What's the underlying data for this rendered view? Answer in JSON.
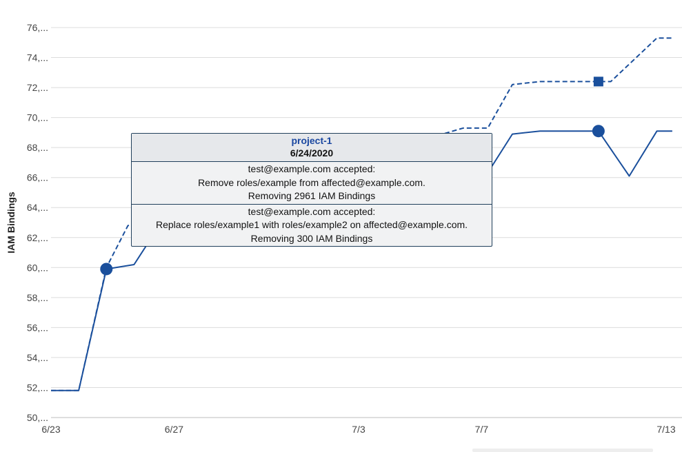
{
  "chart_data": {
    "type": "line",
    "ylabel": "IAM Bindings",
    "y_tick_labels": [
      "76,...",
      "74,...",
      "72,...",
      "70,...",
      "68,...",
      "66,...",
      "64,...",
      "62,...",
      "60,...",
      "58,...",
      "56,...",
      "54,...",
      "52,...",
      "50,..."
    ],
    "y_tick_values": [
      76000,
      74000,
      72000,
      70000,
      68000,
      66000,
      64000,
      62000,
      60000,
      58000,
      56000,
      54000,
      52000,
      50000
    ],
    "ylim": [
      50000,
      76000
    ],
    "x_tick_labels": [
      "6/23",
      "6/27",
      "7/3",
      "7/7",
      "7/13"
    ],
    "x_tick_days": [
      0,
      4,
      10,
      14,
      20
    ],
    "x_range_days": [
      0,
      20.2
    ],
    "grid": true,
    "series": [
      {
        "style": "solid",
        "color": "#1a4f9c",
        "points": [
          {
            "day": 0,
            "value": 51800
          },
          {
            "day": 0.9,
            "value": 51800
          },
          {
            "day": 1.8,
            "value": 59900
          },
          {
            "day": 2.7,
            "value": 60200
          },
          {
            "day": 3.3,
            "value": 62100
          },
          {
            "day": 14.1,
            "value": 66000
          },
          {
            "day": 15.0,
            "value": 68900
          },
          {
            "day": 15.9,
            "value": 69100
          },
          {
            "day": 17.8,
            "value": 69100
          },
          {
            "day": 18.8,
            "value": 66100
          },
          {
            "day": 19.7,
            "value": 69100
          },
          {
            "day": 20.2,
            "value": 69100
          }
        ]
      },
      {
        "style": "dashed",
        "color": "#1a4f9c",
        "points": [
          {
            "day": 0,
            "value": 51800
          },
          {
            "day": 0.9,
            "value": 51800
          },
          {
            "day": 1.8,
            "value": 60000
          },
          {
            "day": 2.5,
            "value": 62800
          },
          {
            "day": 13.4,
            "value": 69300
          },
          {
            "day": 14.2,
            "value": 69300
          },
          {
            "day": 15.0,
            "value": 72200
          },
          {
            "day": 15.9,
            "value": 72400
          },
          {
            "day": 18.2,
            "value": 72400
          },
          {
            "day": 19.7,
            "value": 75300
          },
          {
            "day": 20.2,
            "value": 75300
          }
        ]
      }
    ],
    "markers": [
      {
        "day": 1.8,
        "value": 59900,
        "shape": "circle",
        "color": "#1a4f9c"
      },
      {
        "day": 17.8,
        "value": 69100,
        "shape": "circle",
        "color": "#1a4f9c"
      },
      {
        "day": 17.8,
        "value": 72400,
        "shape": "square",
        "color": "#1a4f9c"
      }
    ]
  },
  "tooltip": {
    "project": "project-1",
    "date": "6/24/2020",
    "events": [
      {
        "line1": "test@example.com accepted:",
        "line2": "Remove roles/example from affected@example.com.",
        "line3": "Removing 2961 IAM Bindings"
      },
      {
        "line1": "test@example.com accepted:",
        "line2": "Replace roles/example1 with roles/example2 on affected@example.com.",
        "line3": "Removing 300 IAM Bindings"
      }
    ]
  }
}
